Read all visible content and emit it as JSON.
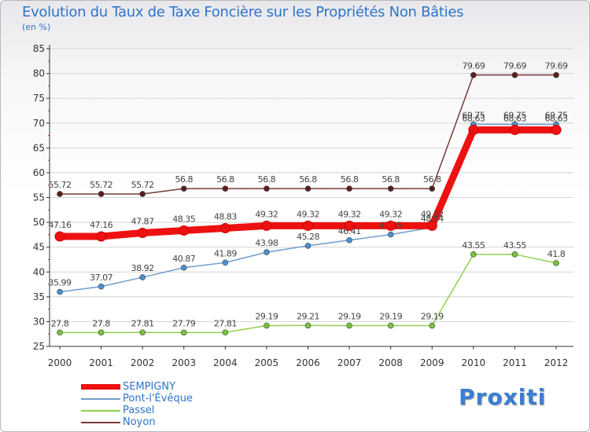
{
  "chart_data": {
    "type": "line",
    "title": "Evolution du Taux de Taxe Foncière sur les Propriétés Non Bâties",
    "ylabel": "(en %)",
    "xlabel": "",
    "ylim": [
      25,
      85
    ],
    "yticks": [
      25,
      30,
      35,
      40,
      45,
      50,
      55,
      60,
      65,
      70,
      75,
      80,
      85
    ],
    "categories": [
      "2000",
      "2001",
      "2002",
      "2003",
      "2004",
      "2005",
      "2006",
      "2007",
      "2008",
      "2009",
      "2010",
      "2011",
      "2012"
    ],
    "series": [
      {
        "name": "Passel",
        "color": "#8fd050",
        "marker": "#7ac23a",
        "values": [
          27.8,
          27.8,
          27.81,
          27.79,
          27.81,
          29.19,
          29.21,
          29.19,
          29.19,
          29.19,
          43.55,
          43.55,
          41.8
        ],
        "labels": [
          "27.8",
          "27.8",
          "27.81",
          "27.79",
          "27.81",
          "29.19",
          "29.21",
          "29.19",
          "29.19",
          "29.19",
          "43.55",
          "43.55",
          "41.8"
        ]
      },
      {
        "name": "Pont-l'Évêque",
        "color": "#6f9cc8",
        "marker": "#4a90d0",
        "values": [
          35.99,
          37.07,
          38.92,
          40.87,
          41.89,
          43.98,
          45.28,
          46.41,
          47.55,
          48.94,
          69.75,
          69.75,
          69.75
        ],
        "labels": [
          "35.99",
          "37.07",
          "38.92",
          "40.87",
          "41.89",
          "43.98",
          "45.28",
          "46.41",
          "47.55",
          "48.94",
          "69.75",
          "69.75",
          "69.75"
        ]
      },
      {
        "name": "Noyon",
        "color": "#7a3a3a",
        "marker": "#5a1e1e",
        "values": [
          55.72,
          55.72,
          55.72,
          56.8,
          56.8,
          56.8,
          56.8,
          56.8,
          56.8,
          56.8,
          79.69,
          79.69,
          79.69
        ],
        "labels": [
          "55.72",
          "55.72",
          "55.72",
          "56.8",
          "56.8",
          "56.8",
          "56.8",
          "56.8",
          "56.8",
          "56.8",
          "79.69",
          "79.69",
          "79.69"
        ]
      },
      {
        "name": "SEMPIGNY",
        "color": "#ee1111",
        "marker": "#ee1111",
        "thick": true,
        "values": [
          47.16,
          47.16,
          47.87,
          48.35,
          48.83,
          49.32,
          49.32,
          49.32,
          49.32,
          49.32,
          68.63,
          68.63,
          68.63
        ],
        "labels": [
          "47.16",
          "47.16",
          "47.87",
          "48.35",
          "48.83",
          "49.32",
          "49.32",
          "49.32",
          "49.32",
          "49.32",
          "68.63",
          "68.63",
          "68.63"
        ]
      }
    ],
    "legend": [
      "SEMPIGNY",
      "Pont-l'Évêque",
      "Passel",
      "Noyon"
    ],
    "legend_position": "bottom-left"
  },
  "logo": {
    "text": "Proxiti"
  },
  "colors": {
    "title": "#2e74c9",
    "axis": "#333333",
    "grid": "#d4d4d4"
  }
}
